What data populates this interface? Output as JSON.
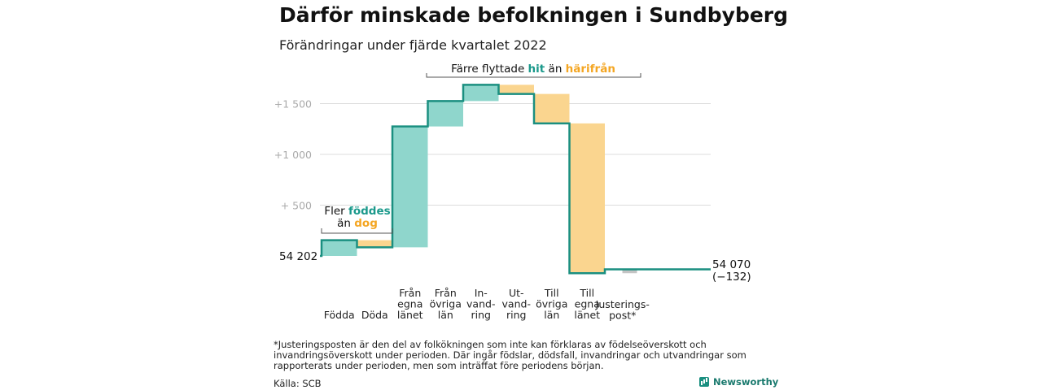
{
  "title": "Därför minskade befolkningen i Sundbyberg",
  "subtitle": "Förändringar under fjärde kvartalet 2022",
  "chart_data": {
    "type": "waterfall",
    "baseline_label": "54 202",
    "end_label_lines": [
      "54 070",
      "(−132)"
    ],
    "y_ticks": [
      {
        "value": 500,
        "label": "+ 500"
      },
      {
        "value": 1000,
        "label": "+1 000"
      },
      {
        "value": 1500,
        "label": "+1 500"
      }
    ],
    "steps": [
      {
        "label_lines": [
          "Födda"
        ],
        "change": 155,
        "kind": "in"
      },
      {
        "label_lines": [
          "Döda"
        ],
        "change": -70,
        "kind": "out"
      },
      {
        "label_lines": [
          "Från",
          "egna",
          "länet"
        ],
        "change": 1190,
        "kind": "in"
      },
      {
        "label_lines": [
          "Från",
          "övriga",
          "län"
        ],
        "change": 250,
        "kind": "in"
      },
      {
        "label_lines": [
          "In-",
          "vand-",
          "ring"
        ],
        "change": 160,
        "kind": "in"
      },
      {
        "label_lines": [
          "Ut-",
          "vand-",
          "ring"
        ],
        "change": -90,
        "kind": "out"
      },
      {
        "label_lines": [
          "Till",
          "övriga",
          "län"
        ],
        "change": -290,
        "kind": "out"
      },
      {
        "label_lines": [
          "Till",
          "egna",
          "länet"
        ],
        "change": -1475,
        "kind": "out"
      },
      {
        "label_lines": [
          "Justerings-",
          "post*"
        ],
        "change": 38,
        "kind": "adjust"
      }
    ],
    "annotations": {
      "births": {
        "parts": [
          {
            "text": "Fler ",
            "color": "#111111"
          },
          {
            "text": "föddes",
            "color": "#1b998b"
          },
          {
            "newline": true
          },
          {
            "text": "än ",
            "color": "#111111"
          },
          {
            "text": "dog",
            "color": "#f4a623"
          }
        ]
      },
      "migration": {
        "parts": [
          {
            "text": "Färre flyttade ",
            "color": "#111111"
          },
          {
            "text": "hit",
            "color": "#1b998b"
          },
          {
            "text": " än ",
            "color": "#111111"
          },
          {
            "text": "härifrån",
            "color": "#f4a623"
          }
        ]
      }
    },
    "colors": {
      "increase": "#8fd6cc",
      "decrease": "#fad58f",
      "adjust": "#c4c4c4",
      "line": "#1a8f80",
      "grid": "#dddddd",
      "tick_text": "#aaaaaa"
    }
  },
  "footnote": "*Justeringsposten är den del av folkökningen som inte kan förklaras av födelseöverskott och invandringsöverskott under perioden. Där ingår födslar, dödsfall, invandringar och utvandringar som rapporterats under perioden, men som inträffat före periodens början.",
  "source": "Källa: SCB",
  "brand": {
    "name": "Newsworthy",
    "icon": "bar-chart-icon"
  }
}
